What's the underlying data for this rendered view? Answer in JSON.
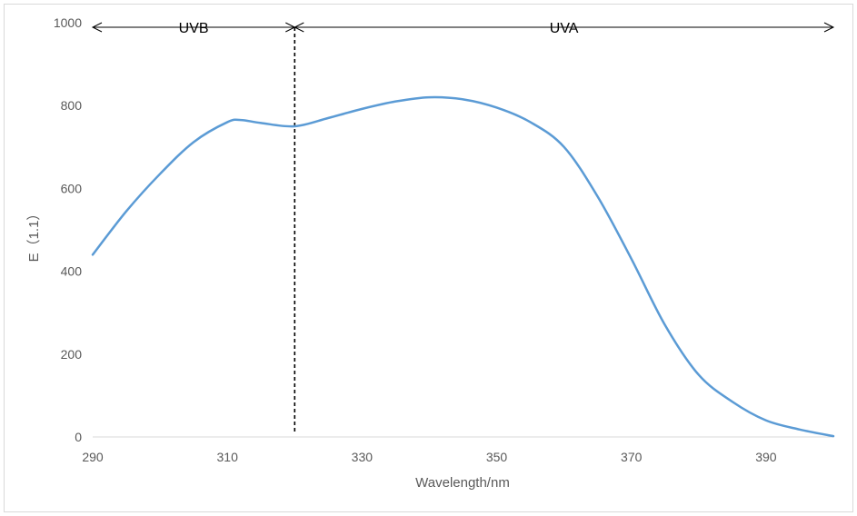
{
  "chart_data": {
    "type": "line",
    "xlabel": "Wavelength/nm",
    "ylabel": "E（1.1）",
    "xlim": [
      290,
      400
    ],
    "ylim": [
      0,
      1000
    ],
    "x_ticks": [
      "290",
      "310",
      "330",
      "350",
      "370",
      "390"
    ],
    "y_ticks": [
      "0",
      "200",
      "400",
      "600",
      "800",
      "1000"
    ],
    "grid": false,
    "legend": "none",
    "line_color": "#5B9BD5",
    "series": [
      {
        "x": [
          290,
          295,
          300,
          305,
          310,
          312,
          315,
          320,
          325,
          330,
          335,
          340,
          345,
          350,
          355,
          360,
          365,
          370,
          375,
          380,
          385,
          390,
          395,
          400
        ],
        "y": [
          440,
          545,
          635,
          712,
          760,
          765,
          758,
          750,
          770,
          792,
          810,
          820,
          815,
          795,
          760,
          700,
          580,
          430,
          270,
          150,
          85,
          40,
          18,
          2
        ]
      }
    ],
    "annotations": {
      "divider_x": 320,
      "regions": [
        {
          "label": "UVB",
          "x_start": 290,
          "x_end": 320
        },
        {
          "label": "UVA",
          "x_start": 320,
          "x_end": 400
        }
      ]
    }
  }
}
